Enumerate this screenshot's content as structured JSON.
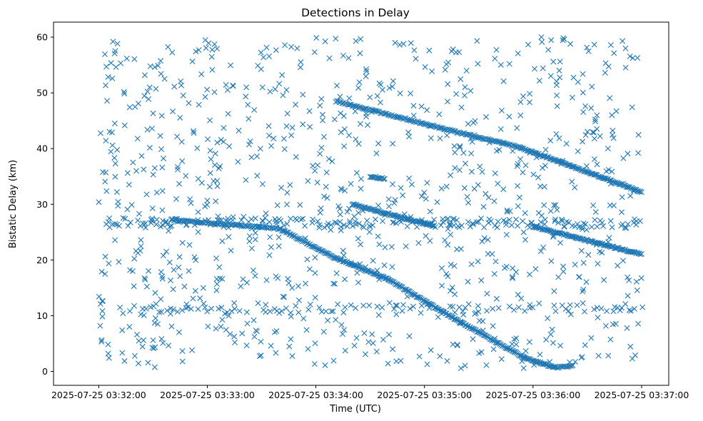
{
  "chart_data": {
    "type": "scatter",
    "title": "Detections in Delay",
    "xlabel": "Time (UTC)",
    "ylabel": "Bistatic Delay (km)",
    "x_range_seconds_from_first_tick": [
      -25,
      315
    ],
    "ylim": [
      -2.5,
      62.7
    ],
    "y_ticks": [
      0,
      10,
      20,
      30,
      40,
      50,
      60
    ],
    "x_ticks": [
      {
        "offset_s": 0,
        "label": "2025-07-25 03:32:00"
      },
      {
        "offset_s": 60,
        "label": "2025-07-25 03:33:00"
      },
      {
        "offset_s": 120,
        "label": "2025-07-25 03:34:00"
      },
      {
        "offset_s": 180,
        "label": "2025-07-25 03:35:00"
      },
      {
        "offset_s": 240,
        "label": "2025-07-25 03:36:00"
      },
      {
        "offset_s": 300,
        "label": "2025-07-25 03:37:00"
      }
    ],
    "marker": "x",
    "color": "#1f77b4",
    "grid": false,
    "tracks": [
      {
        "from": [
          0,
          26.8
        ],
        "to": [
          300,
          26.5
        ],
        "step_s": 1.2,
        "kind": "flat-clutter"
      },
      {
        "from": [
          0,
          11.0
        ],
        "to": [
          300,
          11.6
        ],
        "step_s": 2.2,
        "kind": "flat-clutter"
      },
      {
        "from": [
          40,
          27.2
        ],
        "to": [
          100,
          25.6
        ],
        "step_s": 0.8
      },
      {
        "from": [
          100,
          25.6
        ],
        "to": [
          130,
          20.5
        ],
        "step_s": 0.6
      },
      {
        "from": [
          130,
          20.5
        ],
        "to": [
          160,
          16.5
        ],
        "step_s": 0.6
      },
      {
        "from": [
          160,
          16.5
        ],
        "to": [
          200,
          8.8
        ],
        "step_s": 0.6
      },
      {
        "from": [
          200,
          8.8
        ],
        "to": [
          235,
          2.5
        ],
        "step_s": 0.6
      },
      {
        "from": [
          235,
          2.5
        ],
        "to": [
          252,
          0.7
        ],
        "step_s": 0.6
      },
      {
        "from": [
          252,
          0.7
        ],
        "to": [
          262,
          1.0
        ],
        "step_s": 0.8
      },
      {
        "from": [
          131,
          48.5
        ],
        "to": [
          195,
          43.2
        ],
        "step_s": 0.7
      },
      {
        "from": [
          195,
          43.2
        ],
        "to": [
          233,
          40.2
        ],
        "step_s": 0.7
      },
      {
        "from": [
          233,
          40.2
        ],
        "to": [
          300,
          32.2
        ],
        "step_s": 0.6
      },
      {
        "from": [
          140,
          30.0
        ],
        "to": [
          186,
          26.0
        ],
        "step_s": 0.6
      },
      {
        "from": [
          240,
          26.0
        ],
        "to": [
          300,
          21.0
        ],
        "step_s": 0.6
      },
      {
        "from": [
          150,
          35.0
        ],
        "to": [
          158,
          34.6
        ],
        "step_s": 0.6
      }
    ],
    "noise": {
      "seed": 20250725,
      "count": 950
    }
  }
}
